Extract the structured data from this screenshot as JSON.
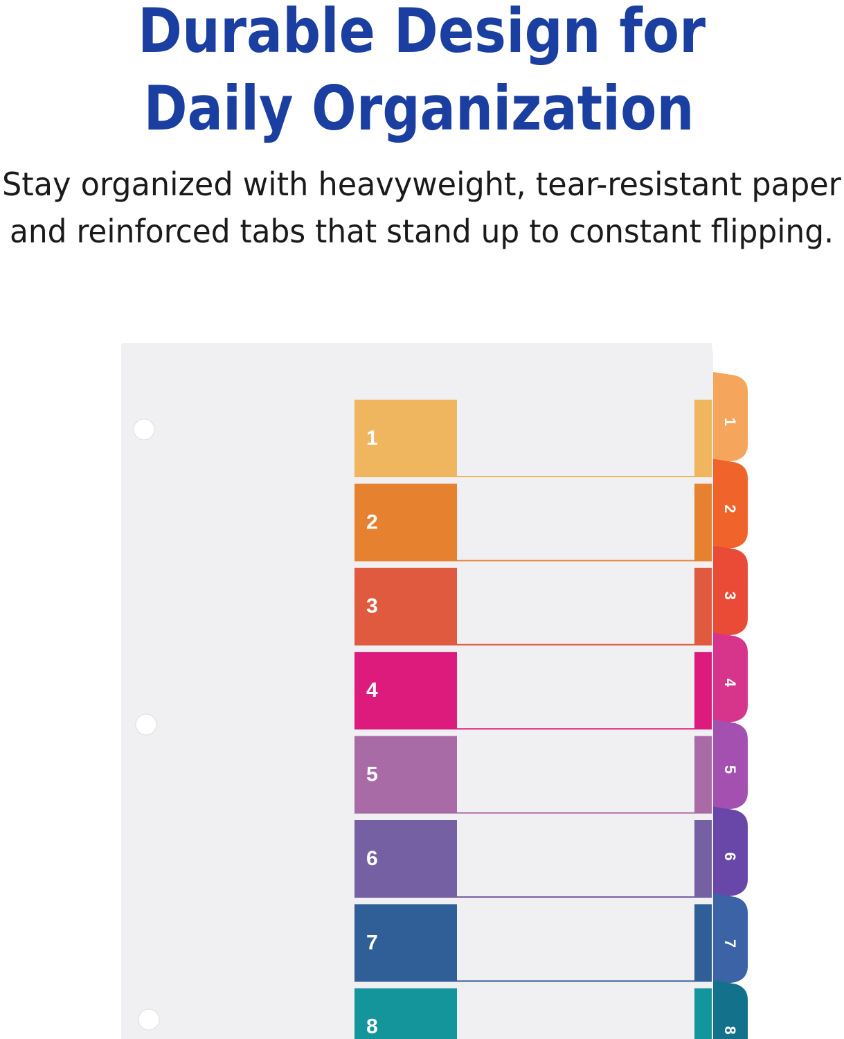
{
  "header": {
    "title": [
      "Durable Design for",
      "Daily Organization"
    ],
    "subtitle": [
      "Stay organized with heavyweight, tear-resistant paper",
      "and reinforced tabs that stand up to constant flipping."
    ]
  },
  "tabs": [
    {
      "label": "1",
      "color": "#efb55f",
      "tab_color": "#f6a55c"
    },
    {
      "label": "2",
      "color": "#e6812f",
      "tab_color": "#f0632b"
    },
    {
      "label": "3",
      "color": "#e05a40",
      "tab_color": "#ea4b37"
    },
    {
      "label": "4",
      "color": "#dc1b7c",
      "tab_color": "#d6358b"
    },
    {
      "label": "5",
      "color": "#a96ba5",
      "tab_color": "#a350b0"
    },
    {
      "label": "6",
      "color": "#7560a3",
      "tab_color": "#6847a8"
    },
    {
      "label": "7",
      "color": "#2f5f96",
      "tab_color": "#3b63a6"
    },
    {
      "label": "8",
      "color": "#14959b",
      "tab_color": "#14718b"
    }
  ]
}
